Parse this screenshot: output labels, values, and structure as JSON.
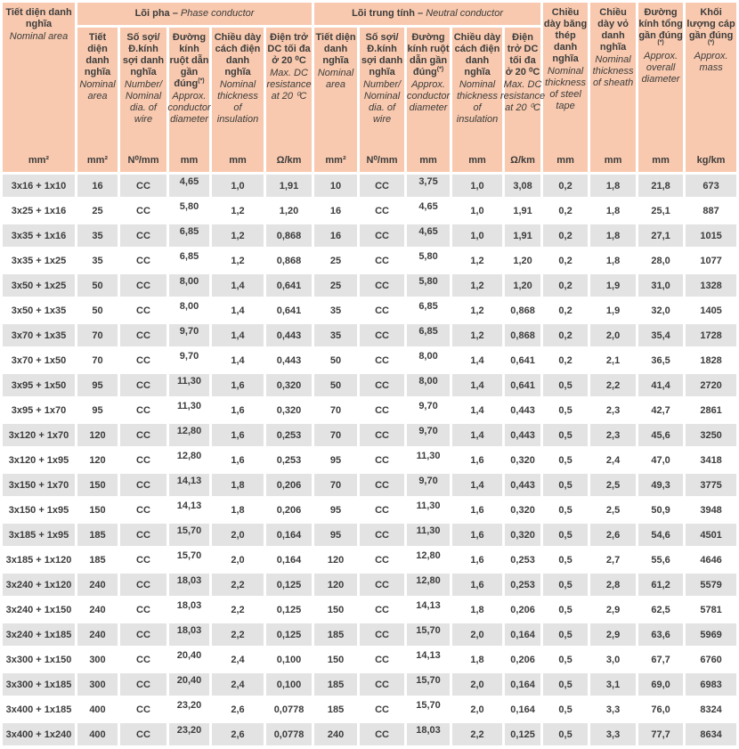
{
  "header": {
    "groups": [
      {
        "vi": "Lõi pha –",
        "en": "Phase conductor"
      },
      {
        "vi": "Lõi trung tính –",
        "en": "Neutral conductor"
      }
    ],
    "columns": [
      {
        "key": "nominal-area",
        "vi": "Tiết diện danh nghĩa",
        "en": "Nominal area",
        "unit": "mm²"
      },
      {
        "key": "phase-area",
        "vi": "Tiết diện danh nghĩa",
        "en": "Nominal area",
        "unit": "mm²"
      },
      {
        "key": "phase-wires",
        "vi": "Số sợi/ Đ.kính sợi danh nghĩa",
        "en": "Number/ Nominal dia. of wire",
        "unit": "N⁰/mm"
      },
      {
        "key": "phase-conductor-diameter",
        "vi": "Đường kính ruột dẫn gần đúng",
        "sup": "(*)",
        "en": "Approx. conductor diameter",
        "unit": "mm"
      },
      {
        "key": "phase-insulation",
        "vi": "Chiều dày cách điện danh nghĩa",
        "en": "Nominal thickness of insulation",
        "unit": "mm"
      },
      {
        "key": "phase-dc-resistance",
        "vi": "Điện trở DC tối đa ở 20 ⁰C",
        "en": "Max. DC resistance at 20 ⁰C",
        "unit": "Ω/km"
      },
      {
        "key": "neutral-area",
        "vi": "Tiết diện danh nghĩa",
        "en": "Nominal area",
        "unit": "mm²"
      },
      {
        "key": "neutral-wires",
        "vi": "Số sợi/ Đ.kính sợi danh nghĩa",
        "en": "Number/ Nominal dia. of wire",
        "unit": "N⁰/mm"
      },
      {
        "key": "neutral-conductor-diameter",
        "vi": "Đường kính ruột dẫn gần đúng",
        "sup": "(*)",
        "en": "Approx. conductor diameter",
        "unit": "mm"
      },
      {
        "key": "neutral-insulation",
        "vi": "Chiều dày cách điện danh nghĩa",
        "en": "Nominal thickness of insulation",
        "unit": "mm"
      },
      {
        "key": "neutral-dc-resistance",
        "vi": "Điện trở DC tối đa ở 20 ⁰C",
        "en": "Max. DC resistance at 20 ⁰C",
        "unit": "Ω/km"
      },
      {
        "key": "steel-tape-thickness",
        "vi": "Chiều dày băng thép danh nghĩa",
        "en": "Nominal thickness of steel tape",
        "unit": "mm"
      },
      {
        "key": "sheath-thickness",
        "vi": "Chiều dày vỏ danh nghĩa",
        "en": "Nominal thickness of sheath",
        "unit": "mm"
      },
      {
        "key": "overall-diameter",
        "vi": "Đường kính tổng gần đúng",
        "sup": "(*)",
        "en": "Approx. overall diameter",
        "unit": "mm"
      },
      {
        "key": "mass",
        "vi": "Khối lượng cáp gần đúng",
        "sup": "(*)",
        "en": "Approx. mass",
        "unit": "kg/km"
      }
    ]
  },
  "rows": [
    [
      "3x16 + 1x10",
      "16",
      "CC",
      "4,65",
      "1,0",
      "1,91",
      "10",
      "CC",
      "3,75",
      "1,0",
      "3,08",
      "0,2",
      "1,8",
      "21,8",
      "673"
    ],
    [
      "3x25 + 1x16",
      "25",
      "CC",
      "5,80",
      "1,2",
      "1,20",
      "16",
      "CC",
      "4,65",
      "1,0",
      "1,91",
      "0,2",
      "1,8",
      "25,1",
      "887"
    ],
    [
      "3x35 + 1x16",
      "35",
      "CC",
      "6,85",
      "1,2",
      "0,868",
      "16",
      "CC",
      "4,65",
      "1,0",
      "1,91",
      "0,2",
      "1,8",
      "27,1",
      "1015"
    ],
    [
      "3x35 + 1x25",
      "35",
      "CC",
      "6,85",
      "1,2",
      "0,868",
      "25",
      "CC",
      "5,80",
      "1,2",
      "1,20",
      "0,2",
      "1,8",
      "28,0",
      "1077"
    ],
    [
      "3x50 + 1x25",
      "50",
      "CC",
      "8,00",
      "1,4",
      "0,641",
      "25",
      "CC",
      "5,80",
      "1,2",
      "1,20",
      "0,2",
      "1,9",
      "31,0",
      "1328"
    ],
    [
      "3x50 + 1x35",
      "50",
      "CC",
      "8,00",
      "1,4",
      "0,641",
      "35",
      "CC",
      "6,85",
      "1,2",
      "0,868",
      "0,2",
      "1,9",
      "32,0",
      "1405"
    ],
    [
      "3x70 + 1x35",
      "70",
      "CC",
      "9,70",
      "1,4",
      "0,443",
      "35",
      "CC",
      "6,85",
      "1,2",
      "0,868",
      "0,2",
      "2,0",
      "35,4",
      "1728"
    ],
    [
      "3x70 + 1x50",
      "70",
      "CC",
      "9,70",
      "1,4",
      "0,443",
      "50",
      "CC",
      "8,00",
      "1,4",
      "0,641",
      "0,2",
      "2,1",
      "36,5",
      "1828"
    ],
    [
      "3x95 + 1x50",
      "95",
      "CC",
      "11,30",
      "1,6",
      "0,320",
      "50",
      "CC",
      "8,00",
      "1,4",
      "0,641",
      "0,5",
      "2,2",
      "41,4",
      "2720"
    ],
    [
      "3x95 + 1x70",
      "95",
      "CC",
      "11,30",
      "1,6",
      "0,320",
      "70",
      "CC",
      "9,70",
      "1,4",
      "0,443",
      "0,5",
      "2,3",
      "42,7",
      "2861"
    ],
    [
      "3x120 + 1x70",
      "120",
      "CC",
      "12,80",
      "1,6",
      "0,253",
      "70",
      "CC",
      "9,70",
      "1,4",
      "0,443",
      "0,5",
      "2,3",
      "45,6",
      "3250"
    ],
    [
      "3x120 + 1x95",
      "120",
      "CC",
      "12,80",
      "1,6",
      "0,253",
      "95",
      "CC",
      "11,30",
      "1,6",
      "0,320",
      "0,5",
      "2,4",
      "47,0",
      "3418"
    ],
    [
      "3x150 + 1x70",
      "150",
      "CC",
      "14,13",
      "1,8",
      "0,206",
      "70",
      "CC",
      "9,70",
      "1,4",
      "0,443",
      "0,5",
      "2,5",
      "49,3",
      "3775"
    ],
    [
      "3x150 + 1x95",
      "150",
      "CC",
      "14,13",
      "1,8",
      "0,206",
      "95",
      "CC",
      "11,30",
      "1,6",
      "0,320",
      "0,5",
      "2,5",
      "50,9",
      "3948"
    ],
    [
      "3x185 + 1x95",
      "185",
      "CC",
      "15,70",
      "2,0",
      "0,164",
      "95",
      "CC",
      "11,30",
      "1,6",
      "0,320",
      "0,5",
      "2,6",
      "54,6",
      "4501"
    ],
    [
      "3x185 + 1x120",
      "185",
      "CC",
      "15,70",
      "2,0",
      "0,164",
      "120",
      "CC",
      "12,80",
      "1,6",
      "0,253",
      "0,5",
      "2,7",
      "55,6",
      "4646"
    ],
    [
      "3x240 + 1x120",
      "240",
      "CC",
      "18,03",
      "2,2",
      "0,125",
      "120",
      "CC",
      "12,80",
      "1,6",
      "0,253",
      "0,5",
      "2,8",
      "61,2",
      "5579"
    ],
    [
      "3x240 + 1x150",
      "240",
      "CC",
      "18,03",
      "2,2",
      "0,125",
      "150",
      "CC",
      "14,13",
      "1,8",
      "0,206",
      "0,5",
      "2,9",
      "62,5",
      "5781"
    ],
    [
      "3x240 + 1x185",
      "240",
      "CC",
      "18,03",
      "2,2",
      "0,125",
      "185",
      "CC",
      "15,70",
      "2,0",
      "0,164",
      "0,5",
      "2,9",
      "63,6",
      "5969"
    ],
    [
      "3x300 + 1x150",
      "300",
      "CC",
      "20,40",
      "2,4",
      "0,100",
      "150",
      "CC",
      "14,13",
      "1,8",
      "0,206",
      "0,5",
      "3,0",
      "67,7",
      "6760"
    ],
    [
      "3x300 + 1x185",
      "300",
      "CC",
      "20,40",
      "2,4",
      "0,100",
      "185",
      "CC",
      "15,70",
      "2,0",
      "0,164",
      "0,5",
      "3,1",
      "69,0",
      "6983"
    ],
    [
      "3x400 + 1x185",
      "400",
      "CC",
      "23,20",
      "2,6",
      "0,0778",
      "185",
      "CC",
      "15,70",
      "2,0",
      "0,164",
      "0,5",
      "3,3",
      "76,0",
      "8324"
    ],
    [
      "3x400 + 1x240",
      "400",
      "CC",
      "23,20",
      "2,6",
      "0,0778",
      "240",
      "CC",
      "18,03",
      "2,2",
      "0,125",
      "0,5",
      "3,3",
      "77,7",
      "8634"
    ]
  ]
}
